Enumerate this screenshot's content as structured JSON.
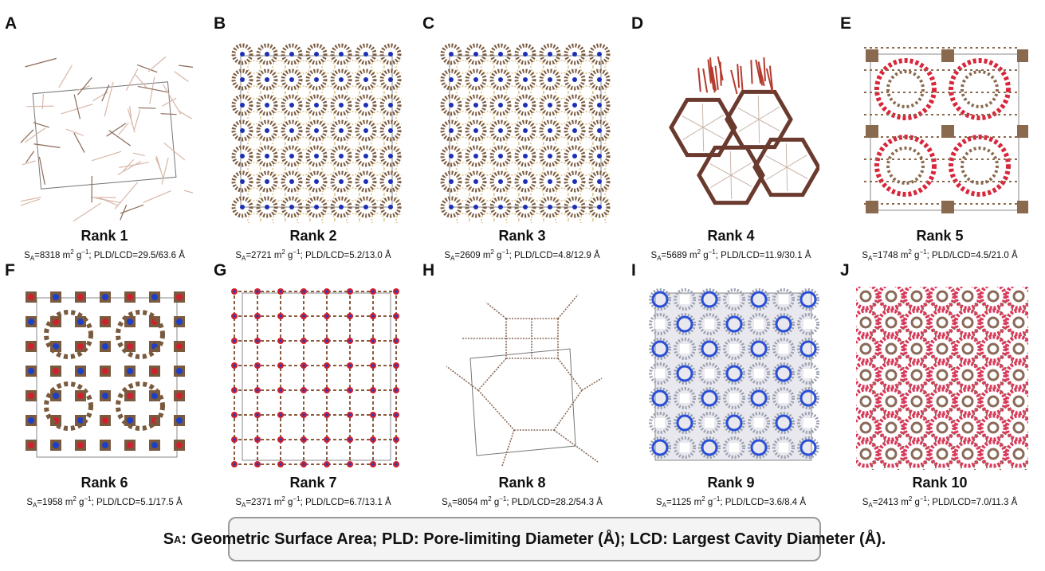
{
  "panels": [
    {
      "letter": "A",
      "rank": "Rank 1",
      "sa": "=8318 m",
      "g": " g",
      "pld": "; PLD/LCD=29.5/63.6 Å",
      "style": "sparse",
      "colors": [
        "#8a6a58",
        "#d9b7aa"
      ]
    },
    {
      "letter": "B",
      "rank": "Rank 2",
      "sa": "=2721 m",
      "g": " g",
      "pld": "; PLD/LCD=5.2/13.0 Å",
      "style": "dense",
      "colors": [
        "#7a5a3e",
        "#1c2fb5",
        "#c9a24a"
      ]
    },
    {
      "letter": "C",
      "rank": "Rank 3",
      "sa": "=2609 m",
      "g": " g",
      "pld": "; PLD/LCD=4.8/12.9 Å",
      "style": "dense",
      "colors": [
        "#7a5a3e",
        "#1c2fb5",
        "#c9a24a"
      ]
    },
    {
      "letter": "D",
      "rank": "Rank 4",
      "sa": "=5689 m",
      "g": " g",
      "pld": "; PLD/LCD=11.9/30.1 Å",
      "style": "hex",
      "colors": [
        "#6b3a2e",
        "#b43a2e"
      ]
    },
    {
      "letter": "E",
      "rank": "Rank 5",
      "sa": "=1748 m",
      "g": " g",
      "pld": "; PLD/LCD=4.5/21.0 Å",
      "style": "rings",
      "colors": [
        "#8a6a4e",
        "#d8263a"
      ]
    },
    {
      "letter": "F",
      "rank": "Rank 6",
      "sa": "=1958 m",
      "g": " g",
      "pld": "; PLD/LCD=5.1/17.5 Å",
      "style": "blocks",
      "colors": [
        "#7a5a3e",
        "#1c3fc8",
        "#d02030"
      ]
    },
    {
      "letter": "G",
      "rank": "Rank 7",
      "sa": "=2371 m",
      "g": " g",
      "pld": "; PLD/LCD=6.7/13.1 Å",
      "style": "grid",
      "colors": [
        "#8a5a3e",
        "#d02030",
        "#1c3fc8"
      ]
    },
    {
      "letter": "H",
      "rank": "Rank 8",
      "sa": "=8054 m",
      "g": " g",
      "pld": "; PLD/LCD=28.2/54.3 Å",
      "style": "sparsegrid",
      "colors": [
        "#8a6a58"
      ]
    },
    {
      "letter": "I",
      "rank": "Rank 9",
      "sa": "=1125 m",
      "g": " g",
      "pld": "; PLD/LCD=3.6/8.4 Å",
      "style": "bluedense",
      "colors": [
        "#9aa0b0",
        "#2a4fd8"
      ]
    },
    {
      "letter": "J",
      "rank": "Rank 10",
      "sa": "=2413 m",
      "g": " g",
      "pld": "; PLD/LCD=7.0/11.3 Å",
      "style": "pinkdense",
      "colors": [
        "#8a6a58",
        "#d83a5a"
      ]
    }
  ],
  "sa_symbol": "S",
  "sa_sub": "A",
  "m_exp": "2",
  "g_exp": "−1",
  "legend": {
    "s": "S",
    "sub": "A",
    "text": ": Geometric Surface Area; PLD: Pore-limiting Diameter (Å); LCD: Largest Cavity Diameter (Å)."
  }
}
